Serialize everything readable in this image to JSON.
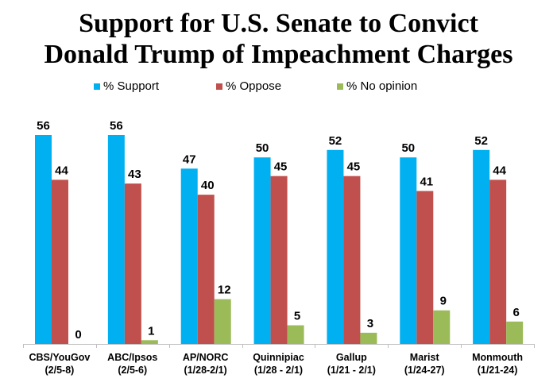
{
  "chart_data": {
    "type": "bar",
    "title": "Support for U.S. Senate to Convict Donald Trump of Impeachment Charges",
    "title_lines": [
      "Support for U.S. Senate to Convict",
      "Donald Trump of Impeachment Charges"
    ],
    "xlabel": "",
    "ylabel": "",
    "ylim": [
      0,
      60
    ],
    "grid": false,
    "legend_position": "top",
    "categories": [
      {
        "name": "CBS/YouGov",
        "dates": "(2/5-8)"
      },
      {
        "name": "ABC/Ipsos",
        "dates": "(2/5-6)"
      },
      {
        "name": "AP/NORC",
        "dates": "(1/28-2/1)"
      },
      {
        "name": "Quinnipiac",
        "dates": "(1/28 - 2/1)"
      },
      {
        "name": "Gallup",
        "dates": "(1/21 - 2/1)"
      },
      {
        "name": "Marist",
        "dates": "(1/24-27)"
      },
      {
        "name": "Monmouth",
        "dates": "(1/21-24)"
      }
    ],
    "series": [
      {
        "name": "% Support",
        "color": "#00b0f0",
        "values": [
          56,
          56,
          47,
          50,
          52,
          50,
          52
        ]
      },
      {
        "name": "% Oppose",
        "color": "#c0504d",
        "values": [
          44,
          43,
          40,
          45,
          45,
          41,
          44
        ]
      },
      {
        "name": "% No opinion",
        "color": "#9bbb59",
        "values": [
          0,
          1,
          12,
          5,
          3,
          9,
          6
        ]
      }
    ]
  }
}
